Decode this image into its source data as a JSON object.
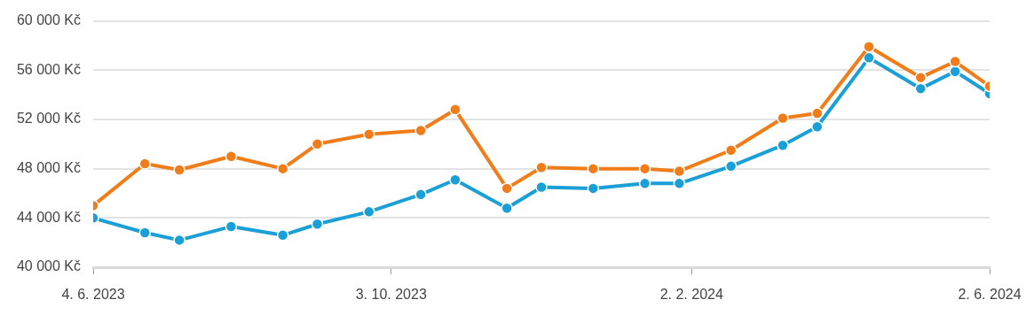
{
  "chart_data": {
    "type": "line",
    "x": [
      "2023-06-04",
      "2023-06-25",
      "2023-07-09",
      "2023-07-30",
      "2023-08-20",
      "2023-09-03",
      "2023-09-24",
      "2023-10-15",
      "2023-10-29",
      "2023-11-19",
      "2023-12-03",
      "2023-12-24",
      "2024-01-14",
      "2024-01-28",
      "2024-02-18",
      "2024-03-10",
      "2024-03-24",
      "2024-04-14",
      "2024-05-05",
      "2024-05-19",
      "2024-06-02"
    ],
    "series": [
      {
        "color": "#f07d1a",
        "values": [
          45000,
          48400,
          47900,
          49000,
          48000,
          50000,
          50800,
          51100,
          52800,
          46400,
          48100,
          48000,
          48000,
          47800,
          49500,
          52100,
          52500,
          57900,
          55400,
          56700,
          54700
        ]
      },
      {
        "color": "#1a9fd6",
        "values": [
          44000,
          42800,
          42200,
          43300,
          42600,
          43500,
          44500,
          45900,
          47100,
          44800,
          46500,
          46400,
          46800,
          46800,
          48200,
          49900,
          51400,
          57000,
          54500,
          55900,
          54100
        ]
      }
    ],
    "xlim": [
      "2023-06-04",
      "2024-06-02"
    ],
    "xticks": [
      {
        "value": "2023-06-04",
        "label": "4. 6. 2023"
      },
      {
        "value": "2023-10-03",
        "label": "3. 10. 2023"
      },
      {
        "value": "2024-02-02",
        "label": "2. 2. 2024"
      },
      {
        "value": "2024-06-02",
        "label": "2. 6. 2024"
      }
    ],
    "ylim": [
      40000,
      60000
    ],
    "yticks": [
      {
        "value": 40000,
        "label": "40 000 Kč"
      },
      {
        "value": 44000,
        "label": "44 000 Kč"
      },
      {
        "value": 48000,
        "label": "48 000 Kč"
      },
      {
        "value": 52000,
        "label": "52 000 Kč"
      },
      {
        "value": 56000,
        "label": "56 000 Kč"
      },
      {
        "value": 60000,
        "label": "60 000 Kč"
      }
    ],
    "grid": "y",
    "legend": false,
    "marker": "circle",
    "line_style": "solid"
  }
}
